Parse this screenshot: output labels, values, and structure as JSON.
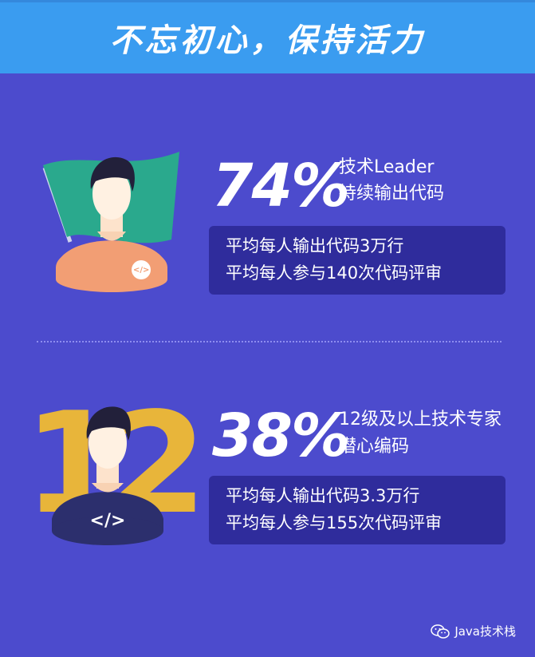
{
  "header": {
    "title": "不忘初心，保持活力"
  },
  "section1": {
    "percent": "74%",
    "desc_line1": "技术Leader",
    "desc_line2": "持续输出代码",
    "stat_line1": "平均每人输出代码3万行",
    "stat_line2": "平均每人参与140次代码评审",
    "badge": "</>",
    "colors": {
      "flag": "#2aa98d",
      "shirt": "#f29e74"
    }
  },
  "section2": {
    "percent": "38%",
    "desc_line1": "12级及以上技术专家",
    "desc_line2": "潜心编码",
    "stat_line1": "平均每人输出代码3.3万行",
    "stat_line2": "平均每人参与155次代码评审",
    "badge": "</>",
    "bg_number": "12",
    "colors": {
      "number": "#e8b53a",
      "shirt": "#2c2f6d"
    }
  },
  "footer": {
    "brand": "Java技术栈",
    "icon": "wechat-icon"
  }
}
